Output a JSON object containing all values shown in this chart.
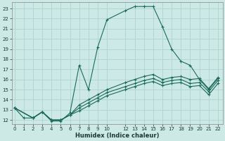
{
  "xlabel": "Humidex (Indice chaleur)",
  "background_color": "#cce9e5",
  "grid_color": "#aed4cf",
  "line_color": "#1a6b5a",
  "x_ticks": [
    0,
    1,
    2,
    3,
    4,
    5,
    6,
    7,
    8,
    9,
    10,
    12,
    13,
    14,
    15,
    16,
    17,
    18,
    19,
    20,
    21,
    22
  ],
  "y_ticks": [
    12,
    13,
    14,
    15,
    16,
    17,
    18,
    19,
    20,
    21,
    22,
    23
  ],
  "xlim": [
    -0.3,
    22.5
  ],
  "ylim": [
    11.6,
    23.6
  ],
  "lines": [
    {
      "x": [
        0,
        1,
        2,
        3,
        4,
        5,
        6,
        7,
        8,
        9,
        10,
        12,
        13,
        14,
        15,
        16,
        17,
        18,
        19,
        20,
        21,
        22
      ],
      "y": [
        13.2,
        12.2,
        12.2,
        12.8,
        11.9,
        11.9,
        12.7,
        17.4,
        15.0,
        19.2,
        21.9,
        22.8,
        23.2,
        23.2,
        23.2,
        21.2,
        19.0,
        17.8,
        17.4,
        16.0,
        15.0,
        16.1
      ]
    },
    {
      "x": [
        0,
        2,
        3,
        4,
        5,
        6,
        7,
        8,
        9,
        10,
        12,
        13,
        14,
        15,
        16,
        17,
        18,
        19,
        20,
        21,
        22
      ],
      "y": [
        13.2,
        12.2,
        12.8,
        12.0,
        12.0,
        12.5,
        13.5,
        14.0,
        14.5,
        15.0,
        15.7,
        16.0,
        16.3,
        16.5,
        16.0,
        16.2,
        16.3,
        16.0,
        16.1,
        15.1,
        16.2
      ]
    },
    {
      "x": [
        0,
        2,
        3,
        4,
        5,
        6,
        7,
        8,
        9,
        10,
        12,
        13,
        14,
        15,
        16,
        17,
        18,
        19,
        20,
        21,
        22
      ],
      "y": [
        13.2,
        12.2,
        12.8,
        12.0,
        12.0,
        12.5,
        13.2,
        13.7,
        14.2,
        14.7,
        15.3,
        15.6,
        15.9,
        16.1,
        15.7,
        15.9,
        16.0,
        15.6,
        15.7,
        14.8,
        15.9
      ]
    },
    {
      "x": [
        0,
        2,
        3,
        4,
        5,
        6,
        7,
        8,
        9,
        10,
        12,
        13,
        14,
        15,
        16,
        17,
        18,
        19,
        20,
        21,
        22
      ],
      "y": [
        13.2,
        12.2,
        12.8,
        12.0,
        12.0,
        12.5,
        12.9,
        13.4,
        13.9,
        14.4,
        15.0,
        15.3,
        15.6,
        15.8,
        15.4,
        15.6,
        15.7,
        15.3,
        15.4,
        14.5,
        15.6
      ]
    }
  ]
}
